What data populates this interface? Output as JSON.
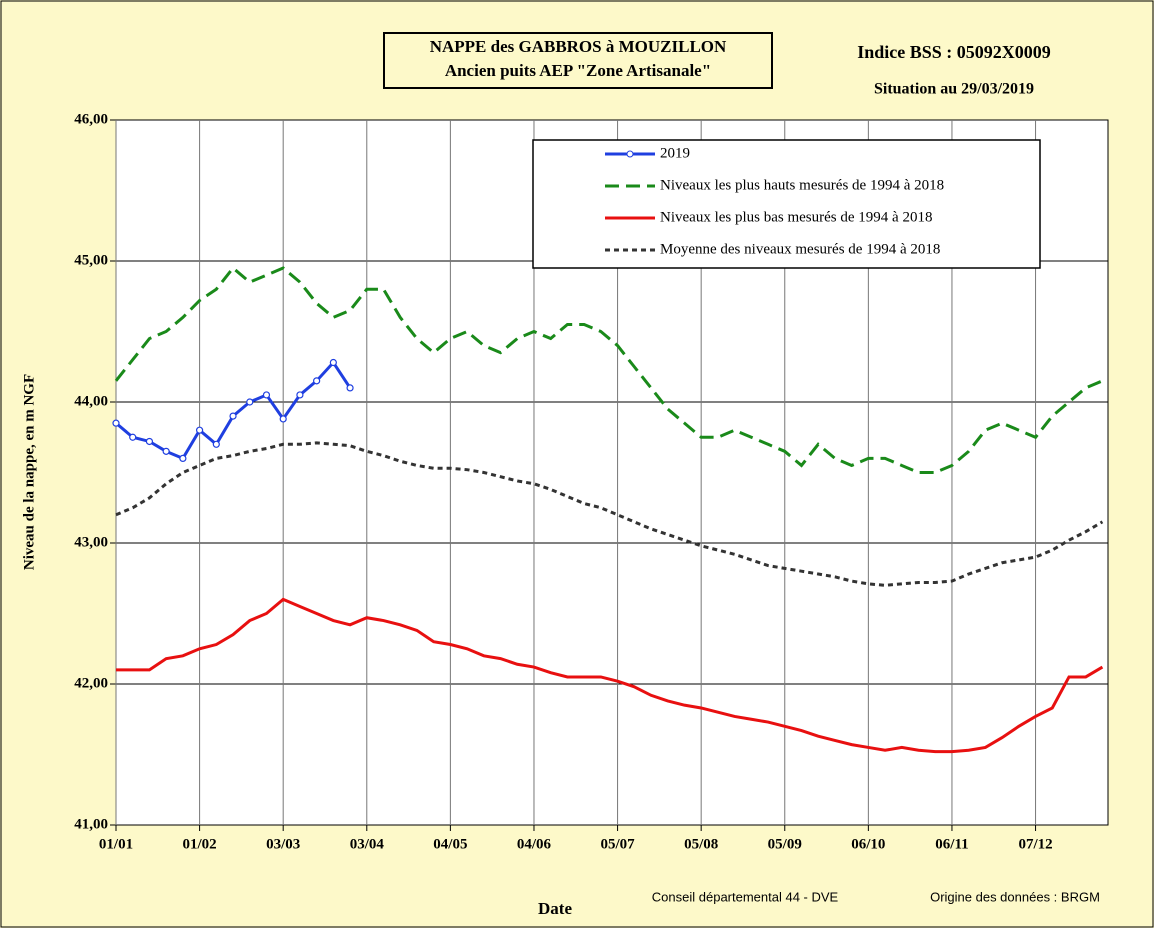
{
  "chart_data": {
    "type": "line",
    "title": [
      "NAPPE des GABBROS à MOUZILLON",
      "Ancien puits AEP \"Zone Artisanale\""
    ],
    "subtitle": [
      "Indice BSS : 05092X0009",
      "Situation au 29/03/2019"
    ],
    "ylabel": "Niveau de la nappe, en m NGF",
    "xlabel": "Date",
    "notes": [
      "Conseil départemental 44 - DVE",
      "Origine des données : BRGM"
    ],
    "x": [
      0,
      6,
      12,
      18,
      24,
      30,
      36,
      42,
      48,
      54,
      60,
      66,
      72,
      78,
      84,
      90,
      96,
      102,
      108,
      114,
      120,
      126,
      132,
      138,
      144,
      150,
      156,
      162,
      168,
      174,
      180,
      186,
      192,
      198,
      204,
      210,
      216,
      222,
      228,
      234,
      240,
      246,
      252,
      258,
      264,
      270,
      276,
      282,
      288,
      294,
      300,
      306,
      312,
      318,
      324,
      330,
      336,
      342,
      348,
      354
    ],
    "xlim": [
      0,
      356
    ],
    "xticks": [
      {
        "value": 0,
        "label": "01/01"
      },
      {
        "value": 30,
        "label": "01/02"
      },
      {
        "value": 60,
        "label": "03/03"
      },
      {
        "value": 90,
        "label": "03/04"
      },
      {
        "value": 120,
        "label": "04/05"
      },
      {
        "value": 150,
        "label": "04/06"
      },
      {
        "value": 180,
        "label": "05/07"
      },
      {
        "value": 210,
        "label": "05/08"
      },
      {
        "value": 240,
        "label": "05/09"
      },
      {
        "value": 270,
        "label": "06/10"
      },
      {
        "value": 300,
        "label": "06/11"
      },
      {
        "value": 330,
        "label": "07/12"
      }
    ],
    "ylim": [
      41,
      46
    ],
    "yticks": [
      {
        "value": 41,
        "label": "41,00"
      },
      {
        "value": 42,
        "label": "42,00"
      },
      {
        "value": 43,
        "label": "43,00"
      },
      {
        "value": 44,
        "label": "44,00"
      },
      {
        "value": 45,
        "label": "45,00"
      },
      {
        "value": 46,
        "label": "46,00"
      }
    ],
    "grid": true,
    "legend": "upper right",
    "series": [
      {
        "name": "2019",
        "color": "#1f3fe0",
        "linestyle": "solid",
        "marker": "o",
        "values": [
          43.85,
          43.75,
          43.72,
          43.65,
          43.6,
          43.8,
          43.7,
          43.9,
          44.0,
          44.05,
          43.88,
          44.05,
          44.15,
          44.28,
          44.1,
          null,
          null,
          null,
          null,
          null,
          null,
          null,
          null,
          null,
          null,
          null,
          null,
          null,
          null,
          null,
          null,
          null,
          null,
          null,
          null,
          null,
          null,
          null,
          null,
          null,
          null,
          null,
          null,
          null,
          null,
          null,
          null,
          null,
          null,
          null,
          null,
          null,
          null,
          null,
          null,
          null,
          null,
          null,
          null,
          null
        ]
      },
      {
        "name": "Niveaux les plus hauts mesurés de 1994 à 2018",
        "color": "#1a8a1a",
        "linestyle": "dashed",
        "values": [
          44.15,
          44.3,
          44.45,
          44.5,
          44.6,
          44.72,
          44.8,
          44.95,
          44.85,
          44.9,
          44.95,
          44.85,
          44.7,
          44.6,
          44.65,
          44.8,
          44.8,
          44.6,
          44.45,
          44.35,
          44.45,
          44.5,
          44.4,
          44.35,
          44.45,
          44.5,
          44.45,
          44.55,
          44.55,
          44.5,
          44.4,
          44.25,
          44.1,
          43.95,
          43.85,
          43.75,
          43.75,
          43.8,
          43.75,
          43.7,
          43.65,
          43.55,
          43.7,
          43.6,
          43.55,
          43.6,
          43.6,
          43.55,
          43.5,
          43.5,
          43.55,
          43.65,
          43.8,
          43.85,
          43.8,
          43.75,
          43.9,
          44.0,
          44.1,
          44.15
        ]
      },
      {
        "name": "Niveaux les plus bas mesurés de 1994 à 2018",
        "color": "#e81010",
        "linestyle": "solid",
        "values": [
          42.1,
          42.1,
          42.1,
          42.18,
          42.2,
          42.25,
          42.28,
          42.35,
          42.45,
          42.5,
          42.6,
          42.55,
          42.5,
          42.45,
          42.42,
          42.47,
          42.45,
          42.42,
          42.38,
          42.3,
          42.28,
          42.25,
          42.2,
          42.18,
          42.14,
          42.12,
          42.08,
          42.05,
          42.05,
          42.05,
          42.02,
          41.98,
          41.92,
          41.88,
          41.85,
          41.83,
          41.8,
          41.77,
          41.75,
          41.73,
          41.7,
          41.67,
          41.63,
          41.6,
          41.57,
          41.55,
          41.53,
          41.55,
          41.53,
          41.52,
          41.52,
          41.53,
          41.55,
          41.62,
          41.7,
          41.77,
          41.83,
          42.05,
          42.05,
          42.12
        ]
      },
      {
        "name": "Moyenne des niveaux mesurés de 1994 à 2018",
        "color": "#333333",
        "linestyle": "dotted",
        "values": [
          43.2,
          43.25,
          43.32,
          43.42,
          43.5,
          43.55,
          43.6,
          43.62,
          43.65,
          43.67,
          43.7,
          43.7,
          43.71,
          43.7,
          43.69,
          43.65,
          43.62,
          43.58,
          43.55,
          43.53,
          43.53,
          43.52,
          43.5,
          43.47,
          43.44,
          43.42,
          43.38,
          43.33,
          43.28,
          43.25,
          43.2,
          43.15,
          43.1,
          43.06,
          43.02,
          42.98,
          42.95,
          42.92,
          42.88,
          42.84,
          42.82,
          42.8,
          42.78,
          42.76,
          42.73,
          42.71,
          42.7,
          42.71,
          42.72,
          42.72,
          42.73,
          42.78,
          42.82,
          42.86,
          42.88,
          42.9,
          42.95,
          43.02,
          43.08,
          43.15
        ]
      }
    ]
  }
}
